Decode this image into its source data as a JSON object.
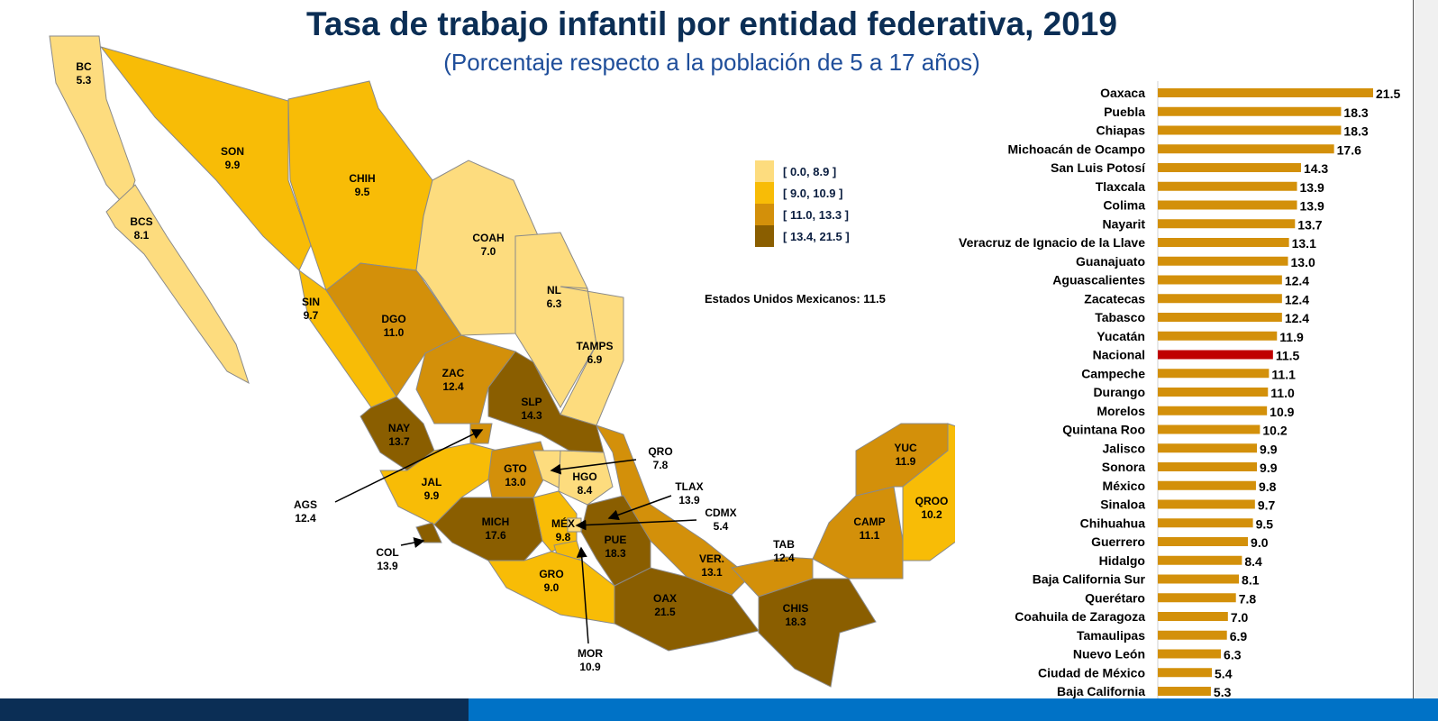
{
  "title": "Tasa de trabajo infantil por entidad federativa, 2019",
  "subtitle": "(Porcentaje respecto a la población de 5 a 17 años)",
  "national_note": "Estados Unidos Mexicanos: 11.5",
  "legend": [
    {
      "label": "[ 0.0, 8.9 ]",
      "color": "#FDDC7E"
    },
    {
      "label": "[ 9.0, 10.9 ]",
      "color": "#F8BC06"
    },
    {
      "label": "[ 11.0, 13.3 ]",
      "color": "#D3900A"
    },
    {
      "label": "[ 13.4, 21.5 ]",
      "color": "#8A5E00"
    }
  ],
  "map_states": [
    {
      "abbr": "BC",
      "value": "5.3",
      "cls": 0
    },
    {
      "abbr": "BCS",
      "value": "8.1",
      "cls": 0
    },
    {
      "abbr": "SON",
      "value": "9.9",
      "cls": 1
    },
    {
      "abbr": "CHIH",
      "value": "9.5",
      "cls": 1
    },
    {
      "abbr": "COAH",
      "value": "7.0",
      "cls": 0
    },
    {
      "abbr": "NL",
      "value": "6.3",
      "cls": 0
    },
    {
      "abbr": "TAMPS",
      "value": "6.9",
      "cls": 0
    },
    {
      "abbr": "SIN",
      "value": "9.7",
      "cls": 1
    },
    {
      "abbr": "DGO",
      "value": "11.0",
      "cls": 2
    },
    {
      "abbr": "ZAC",
      "value": "12.4",
      "cls": 2
    },
    {
      "abbr": "SLP",
      "value": "14.3",
      "cls": 3
    },
    {
      "abbr": "NAY",
      "value": "13.7",
      "cls": 3
    },
    {
      "abbr": "AGS",
      "value": "12.4",
      "cls": 2
    },
    {
      "abbr": "JAL",
      "value": "9.9",
      "cls": 1
    },
    {
      "abbr": "GTO",
      "value": "13.0",
      "cls": 2
    },
    {
      "abbr": "QRO",
      "value": "7.8",
      "cls": 0
    },
    {
      "abbr": "HGO",
      "value": "8.4",
      "cls": 0
    },
    {
      "abbr": "VER.",
      "value": "13.1",
      "cls": 2
    },
    {
      "abbr": "MICH",
      "value": "17.6",
      "cls": 3
    },
    {
      "abbr": "COL",
      "value": "13.9",
      "cls": 3
    },
    {
      "abbr": "MÉX",
      "value": "9.8",
      "cls": 1
    },
    {
      "abbr": "CDMX",
      "value": "5.4",
      "cls": 0
    },
    {
      "abbr": "TLAX",
      "value": "13.9",
      "cls": 3
    },
    {
      "abbr": "MOR",
      "value": "10.9",
      "cls": 1
    },
    {
      "abbr": "PUE",
      "value": "18.3",
      "cls": 3
    },
    {
      "abbr": "GRO",
      "value": "9.0",
      "cls": 1
    },
    {
      "abbr": "OAX",
      "value": "21.5",
      "cls": 3
    },
    {
      "abbr": "TAB",
      "value": "12.4",
      "cls": 2
    },
    {
      "abbr": "CHIS",
      "value": "18.3",
      "cls": 3
    },
    {
      "abbr": "CAMP",
      "value": "11.1",
      "cls": 2
    },
    {
      "abbr": "YUC",
      "value": "11.9",
      "cls": 2
    },
    {
      "abbr": "QROO",
      "value": "10.2",
      "cls": 1
    }
  ],
  "chart_data": {
    "type": "bar",
    "orientation": "horizontal",
    "categories": [
      "Oaxaca",
      "Puebla",
      "Chiapas",
      "Michoacán de Ocampo",
      "San Luis Potosí",
      "Tlaxcala",
      "Colima",
      "Nayarit",
      "Veracruz de Ignacio de la Llave",
      "Guanajuato",
      "Aguascalientes",
      "Zacatecas",
      "Tabasco",
      "Yucatán",
      "Nacional",
      "Campeche",
      "Durango",
      "Morelos",
      "Quintana Roo",
      "Jalisco",
      "Sonora",
      "México",
      "Sinaloa",
      "Chihuahua",
      "Guerrero",
      "Hidalgo",
      "Baja California Sur",
      "Querétaro",
      "Coahuila de Zaragoza",
      "Tamaulipas",
      "Nuevo León",
      "Ciudad de México",
      "Baja California"
    ],
    "values": [
      21.5,
      18.3,
      18.3,
      17.6,
      14.3,
      13.9,
      13.9,
      13.7,
      13.1,
      13.0,
      12.4,
      12.4,
      12.4,
      11.9,
      11.5,
      11.1,
      11.0,
      10.9,
      10.2,
      9.9,
      9.9,
      9.8,
      9.7,
      9.5,
      9.0,
      8.4,
      8.1,
      7.8,
      7.0,
      6.9,
      6.3,
      5.4,
      5.3
    ],
    "labels": [
      "21.5",
      "18.3",
      "18.3",
      "17.6",
      "14.3",
      "13.9",
      "13.9",
      "13.7",
      "13.1",
      "13.0",
      "12.4",
      "12.4",
      "12.4",
      "11.9",
      "11.5",
      "11.1",
      "11.0",
      "10.9",
      "10.2",
      "9.9",
      "9.9",
      "9.8",
      "9.7",
      "9.5",
      "9.0",
      "8.4",
      "8.1",
      "7.8",
      "7.0",
      "6.9",
      "6.3",
      "5.4",
      "5.3"
    ],
    "bar_color": "#D3900A",
    "highlight": {
      "category": "Nacional",
      "color": "#C00000"
    },
    "xlim": [
      0,
      22
    ],
    "grid": false
  }
}
